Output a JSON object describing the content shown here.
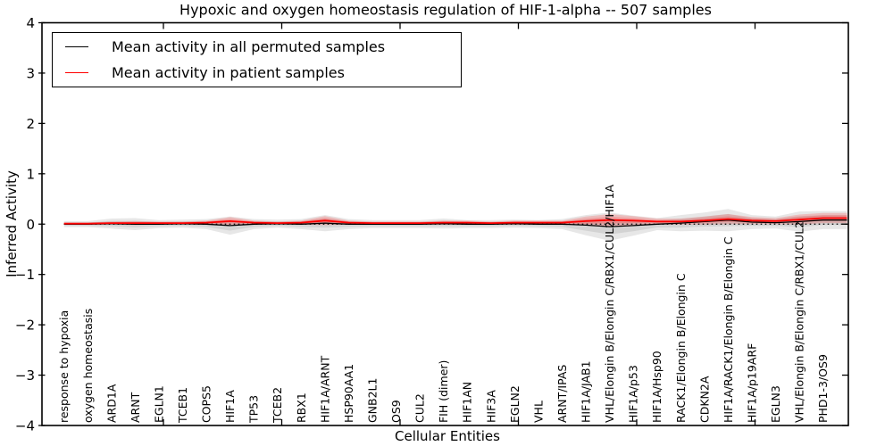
{
  "chart_data": {
    "type": "line",
    "title": "Hypoxic and oxygen homeostasis regulation of HIF-1-alpha -- 507 samples",
    "xlabel": "Cellular Entities",
    "ylabel": "Inferred Activity",
    "ylim": [
      -4,
      4
    ],
    "yticks": [
      4,
      3,
      2,
      1,
      0,
      -1,
      -2,
      -3,
      -4
    ],
    "ytick_labels": [
      "4",
      "3",
      "2",
      "1",
      "0",
      "−1",
      "−2",
      "−3",
      "−4"
    ],
    "grid": false,
    "legend_position": "upper left",
    "zero_line": {
      "y": 0,
      "style": "dotted",
      "color": "#000000"
    },
    "categories": [
      "response to hypoxia",
      "oxygen homeostasis",
      "ARD1A",
      "ARNT",
      "EGLN1",
      "TCEB1",
      "COPS5",
      "HIF1A",
      "TP53",
      "TCEB2",
      "RBX1",
      "HIF1A/ARNT",
      "HSP90AA1",
      "GNB2L1",
      "OS9",
      "CUL2",
      "FIH (dimer)",
      "HIF1AN",
      "HIF3A",
      "EGLN2",
      "VHL",
      "ARNT/IPAS",
      "HIF1A/JAB1",
      "VHL/Elongin B/Elongin C/RBX1/CUL2/HIF1A",
      "HIF1A/p53",
      "HIF1A/Hsp90",
      "RACK1/Elongin B/Elongin C",
      "CDKN2A",
      "HIF1A/RACK1/Elongin B/Elongin C",
      "HIF1A/p19ARF",
      "EGLN3",
      "VHL/Elongin B/Elongin C/RBX1/CUL2",
      "PHD1-3/OS9"
    ],
    "series": [
      {
        "name": "Mean activity in all permuted samples",
        "color": "#000000",
        "values": [
          0.0,
          0.0,
          0.01,
          0.0,
          0.0,
          0.01,
          0.0,
          -0.03,
          0.0,
          0.01,
          0.0,
          0.02,
          0.0,
          0.0,
          0.0,
          0.0,
          0.01,
          0.0,
          0.0,
          0.01,
          0.0,
          0.0,
          -0.02,
          -0.05,
          -0.03,
          0.0,
          0.02,
          0.05,
          0.08,
          0.04,
          0.03,
          0.05,
          0.08
        ],
        "band_halfwidth": [
          0.06,
          0.06,
          0.1,
          0.12,
          0.08,
          0.08,
          0.1,
          0.18,
          0.1,
          0.08,
          0.1,
          0.16,
          0.1,
          0.08,
          0.08,
          0.08,
          0.1,
          0.08,
          0.08,
          0.08,
          0.08,
          0.1,
          0.2,
          0.28,
          0.2,
          0.12,
          0.16,
          0.18,
          0.22,
          0.14,
          0.12,
          0.2,
          0.18
        ],
        "band_color_rgb": "120,120,120"
      },
      {
        "name": "Mean activity in patient samples",
        "color": "#ff0000",
        "values": [
          0.01,
          0.01,
          0.02,
          0.02,
          0.02,
          0.02,
          0.03,
          0.06,
          0.03,
          0.02,
          0.03,
          0.07,
          0.03,
          0.02,
          0.02,
          0.02,
          0.03,
          0.03,
          0.02,
          0.03,
          0.03,
          0.03,
          0.06,
          0.08,
          0.07,
          0.05,
          0.05,
          0.07,
          0.1,
          0.07,
          0.06,
          0.09,
          0.12
        ],
        "band_halfwidth": [
          0.02,
          0.02,
          0.03,
          0.04,
          0.03,
          0.03,
          0.04,
          0.08,
          0.04,
          0.03,
          0.04,
          0.09,
          0.04,
          0.03,
          0.03,
          0.03,
          0.04,
          0.04,
          0.03,
          0.04,
          0.04,
          0.04,
          0.09,
          0.12,
          0.09,
          0.06,
          0.06,
          0.08,
          0.1,
          0.07,
          0.06,
          0.1,
          0.1
        ],
        "band_color_rgb": "255,0,0"
      }
    ]
  }
}
